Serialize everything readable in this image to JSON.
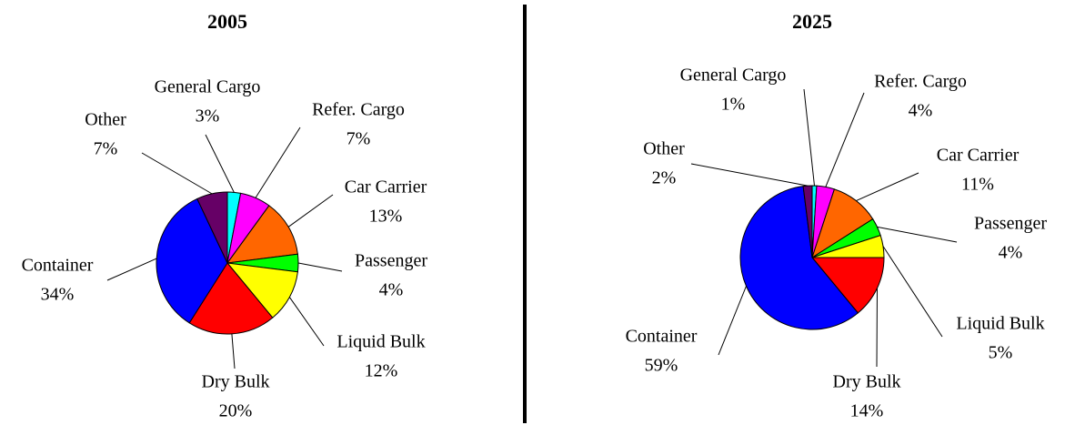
{
  "chart_data": [
    {
      "type": "pie",
      "title": "2005",
      "categories": [
        "General Cargo",
        "Refer. Cargo",
        "Car Carrier",
        "Passenger",
        "Liquid Bulk",
        "Dry Bulk",
        "Container",
        "Other"
      ],
      "values": [
        3,
        7,
        13,
        4,
        12,
        20,
        34,
        7
      ],
      "value_labels": [
        "3%",
        "7%",
        "13%",
        "4%",
        "12%",
        "20%",
        "34%",
        "7%"
      ],
      "colors": [
        "#00ffff",
        "#ff00ff",
        "#ff6600",
        "#00ff00",
        "#ffff00",
        "#ff0000",
        "#0000ff",
        "#660066"
      ]
    },
    {
      "type": "pie",
      "title": "2025",
      "categories": [
        "General Cargo",
        "Refer. Cargo",
        "Car Carrier",
        "Passenger",
        "Liquid Bulk",
        "Dry Bulk",
        "Container",
        "Other"
      ],
      "values": [
        1,
        4,
        11,
        4,
        5,
        14,
        59,
        2
      ],
      "value_labels": [
        "1%",
        "4%",
        "11%",
        "4%",
        "5%",
        "14%",
        "59%",
        "2%"
      ],
      "colors": [
        "#00ffff",
        "#ff00ff",
        "#ff6600",
        "#00ff00",
        "#ffff00",
        "#ff0000",
        "#0000ff",
        "#660066"
      ]
    }
  ]
}
